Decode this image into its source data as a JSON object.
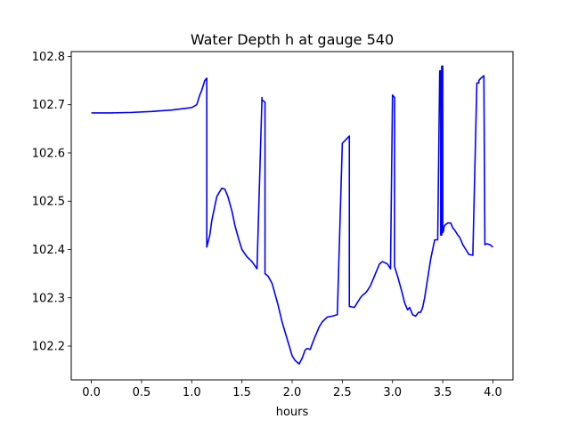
{
  "chart_data": {
    "type": "line",
    "title": "Water Depth h at gauge 540",
    "xlabel": "hours",
    "ylabel": "",
    "xlim": [
      -0.2,
      4.2
    ],
    "ylim": [
      102.13,
      102.81
    ],
    "xticks": [
      0.0,
      0.5,
      1.0,
      1.5,
      2.0,
      2.5,
      3.0,
      3.5,
      4.0
    ],
    "xtick_labels": [
      "0.0",
      "0.5",
      "1.0",
      "1.5",
      "2.0",
      "2.5",
      "3.0",
      "3.5",
      "4.0"
    ],
    "yticks": [
      102.2,
      102.3,
      102.4,
      102.5,
      102.6,
      102.7,
      102.8
    ],
    "ytick_labels": [
      "102.2",
      "102.3",
      "102.4",
      "102.5",
      "102.6",
      "102.7",
      "102.8"
    ],
    "grid": false,
    "series": [
      {
        "color": "#0000ff",
        "x": [
          0.0,
          0.2,
          0.4,
          0.6,
          0.8,
          1.0,
          1.05,
          1.08,
          1.1,
          1.13,
          1.15,
          1.15,
          1.18,
          1.2,
          1.25,
          1.3,
          1.33,
          1.36,
          1.4,
          1.43,
          1.47,
          1.5,
          1.55,
          1.6,
          1.65,
          1.7,
          1.7,
          1.73,
          1.73,
          1.76,
          1.8,
          1.84,
          1.86,
          1.9,
          1.95,
          2.0,
          2.03,
          2.07,
          2.1,
          2.13,
          2.15,
          2.18,
          2.21,
          2.25,
          2.27,
          2.3,
          2.35,
          2.4,
          2.45,
          2.5,
          2.5,
          2.57,
          2.57,
          2.62,
          2.65,
          2.68,
          2.7,
          2.73,
          2.75,
          2.78,
          2.82,
          2.85,
          2.87,
          2.9,
          2.93,
          2.95,
          2.98,
          3.0,
          3.0,
          3.02,
          3.02,
          3.05,
          3.09,
          3.12,
          3.15,
          3.17,
          3.2,
          3.23,
          3.26,
          3.28,
          3.3,
          3.32,
          3.35,
          3.38,
          3.42,
          3.45,
          3.47,
          3.48,
          3.48,
          3.49,
          3.49,
          3.5,
          3.5,
          3.51,
          3.51,
          3.52,
          3.55,
          3.58,
          3.6,
          3.62,
          3.65,
          3.67,
          3.7,
          3.73,
          3.76,
          3.8,
          3.84,
          3.86,
          3.86,
          3.88,
          3.91,
          3.92,
          3.92,
          3.94,
          3.97,
          4.0
        ],
        "y": [
          102.683,
          102.683,
          102.684,
          102.686,
          102.689,
          102.694,
          102.7,
          102.72,
          102.73,
          102.75,
          102.755,
          102.405,
          102.43,
          102.46,
          102.51,
          102.527,
          102.525,
          102.51,
          102.48,
          102.45,
          102.42,
          102.4,
          102.385,
          102.375,
          102.36,
          102.715,
          102.71,
          102.705,
          102.35,
          102.345,
          102.33,
          102.3,
          102.285,
          102.25,
          102.215,
          102.18,
          102.17,
          102.163,
          102.175,
          102.192,
          102.195,
          102.193,
          102.21,
          102.23,
          102.24,
          102.25,
          102.26,
          102.262,
          102.265,
          102.62,
          102.62,
          102.635,
          102.282,
          102.28,
          102.29,
          102.3,
          102.305,
          102.31,
          102.315,
          102.325,
          102.345,
          102.36,
          102.37,
          102.375,
          102.372,
          102.37,
          102.36,
          102.72,
          102.72,
          102.715,
          102.365,
          102.345,
          102.315,
          102.29,
          102.275,
          102.28,
          102.265,
          102.262,
          102.27,
          102.27,
          102.28,
          102.3,
          102.34,
          102.38,
          102.42,
          102.42,
          102.77,
          102.77,
          102.43,
          102.43,
          102.78,
          102.78,
          102.435,
          102.44,
          102.445,
          102.45,
          102.455,
          102.455,
          102.445,
          102.44,
          102.43,
          102.425,
          102.41,
          102.4,
          102.39,
          102.388,
          102.745,
          102.745,
          102.75,
          102.755,
          102.76,
          102.41,
          102.41,
          102.412,
          102.41,
          102.405
        ]
      }
    ]
  }
}
